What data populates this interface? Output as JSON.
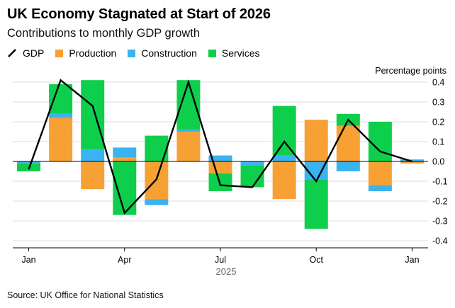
{
  "title": "UK Economy Stagnated at Start of 2026",
  "subtitle": "Contributions to monthly GDP growth",
  "unit_label": "Percentage points",
  "source": "Source: UK Office for National Statistics",
  "colors": {
    "gdp": "#000000",
    "production": "#f7a134",
    "construction": "#3ab3f0",
    "services": "#0ecf4b",
    "grid": "#dcdcdc",
    "axis": "#000000"
  },
  "legend": [
    {
      "key": "gdp",
      "label": "GDP"
    },
    {
      "key": "production",
      "label": "Production"
    },
    {
      "key": "construction",
      "label": "Construction"
    },
    {
      "key": "services",
      "label": "Services"
    }
  ],
  "chart_data": {
    "type": "bar",
    "stacked": true,
    "title": "UK Economy Stagnated at Start of 2026",
    "subtitle": "Contributions to monthly GDP growth",
    "ylabel": "Percentage points",
    "xlabel": "2025",
    "ylim": [
      -0.42,
      0.42
    ],
    "yticks": [
      0.4,
      0.3,
      0.2,
      0.1,
      0.0,
      -0.1,
      -0.2,
      -0.3,
      -0.4
    ],
    "ytick_labels": [
      "0.4",
      "0.3",
      "0.2",
      "0.1",
      "0.0",
      "-0.1",
      "-0.2",
      "-0.3",
      "-0.4"
    ],
    "grid": true,
    "categories": [
      "Jan 2025",
      "Feb 2025",
      "Mar 2025",
      "Apr 2025",
      "May 2025",
      "Jun 2025",
      "Jul 2025",
      "Aug 2025",
      "Sep 2025",
      "Oct 2025",
      "Nov 2025",
      "Dec 2025",
      "Jan 2026"
    ],
    "xtick_labels": [
      {
        "index": 0,
        "label": "Jan"
      },
      {
        "index": 3,
        "label": "Apr"
      },
      {
        "index": 6,
        "label": "Jul"
      },
      {
        "index": 9,
        "label": "Oct"
      },
      {
        "index": 12,
        "label": "Jan"
      }
    ],
    "year_label": "2025",
    "series": [
      {
        "name": "Production",
        "key": "production",
        "values": [
          0.0,
          0.22,
          -0.14,
          0.02,
          -0.19,
          0.15,
          -0.06,
          0.0,
          -0.19,
          0.21,
          0.18,
          -0.12,
          -0.01
        ]
      },
      {
        "name": "Construction",
        "key": "construction",
        "values": [
          -0.01,
          0.02,
          0.06,
          0.05,
          -0.03,
          0.01,
          0.03,
          -0.02,
          0.03,
          -0.09,
          -0.05,
          -0.03,
          0.01
        ]
      },
      {
        "name": "Services",
        "key": "services",
        "values": [
          -0.04,
          0.15,
          0.35,
          -0.27,
          0.13,
          0.25,
          -0.09,
          -0.11,
          0.25,
          -0.25,
          0.06,
          0.2,
          0.0
        ]
      },
      {
        "name": "GDP",
        "key": "gdp",
        "type": "line",
        "values": [
          -0.04,
          0.41,
          0.28,
          -0.26,
          -0.09,
          0.4,
          -0.12,
          -0.13,
          0.1,
          -0.1,
          0.21,
          0.05,
          0.0
        ]
      }
    ]
  }
}
